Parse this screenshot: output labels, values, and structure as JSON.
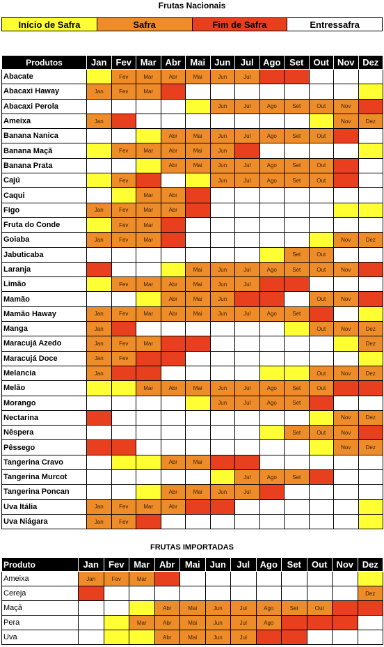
{
  "title_national": "Frutas Nacionais",
  "title_imported": "FRUTAS IMPORTADAS",
  "legend": [
    {
      "label": "Início de Safra",
      "color": "#ffff33"
    },
    {
      "label": "Safra",
      "color": "#ef8c2a"
    },
    {
      "label": "Fim de Safra",
      "color": "#e83f1e"
    },
    {
      "label": "Entressafra",
      "color": "#ffffff"
    }
  ],
  "month_headers": [
    "Jan",
    "Fev",
    "Mar",
    "Abr",
    "Mai",
    "Jun",
    "Jul",
    "Ago",
    "Set",
    "Out",
    "Nov",
    "Dez"
  ],
  "month_codes": {
    "y": "Início de Safra",
    "o": "Safra",
    "r": "Fim de Safra",
    "w": "Entressafra"
  },
  "national_table": {
    "name_header": "Produtos",
    "rows": [
      {
        "name": "Abacate",
        "months": [
          "y",
          "o",
          "o",
          "o",
          "o",
          "o",
          "o",
          "r",
          "r",
          "w",
          "w",
          "w"
        ]
      },
      {
        "name": "Abacaxi Haway",
        "months": [
          "o",
          "o",
          "o",
          "r",
          "w",
          "w",
          "w",
          "w",
          "w",
          "w",
          "w",
          "y"
        ]
      },
      {
        "name": "Abacaxi Perola",
        "months": [
          "w",
          "w",
          "w",
          "w",
          "y",
          "o",
          "o",
          "o",
          "o",
          "o",
          "o",
          "r"
        ]
      },
      {
        "name": "Ameixa",
        "months": [
          "o",
          "r",
          "w",
          "w",
          "w",
          "w",
          "w",
          "w",
          "w",
          "y",
          "o",
          "o"
        ]
      },
      {
        "name": "Banana Nanica",
        "months": [
          "w",
          "w",
          "y",
          "o",
          "o",
          "o",
          "o",
          "o",
          "o",
          "o",
          "r",
          "w"
        ]
      },
      {
        "name": "Banana Maçã",
        "months": [
          "y",
          "o",
          "o",
          "o",
          "o",
          "o",
          "r",
          "w",
          "w",
          "w",
          "w",
          "y"
        ]
      },
      {
        "name": "Banana Prata",
        "months": [
          "w",
          "w",
          "y",
          "o",
          "o",
          "o",
          "o",
          "o",
          "o",
          "o",
          "r",
          "w"
        ]
      },
      {
        "name": "Cajú",
        "months": [
          "y",
          "o",
          "r",
          "w",
          "y",
          "o",
          "o",
          "o",
          "o",
          "o",
          "r",
          "w"
        ]
      },
      {
        "name": "Caqui",
        "months": [
          "w",
          "y",
          "o",
          "o",
          "r",
          "w",
          "w",
          "w",
          "w",
          "w",
          "w",
          "w"
        ]
      },
      {
        "name": "Figo",
        "months": [
          "o",
          "o",
          "o",
          "o",
          "r",
          "w",
          "w",
          "w",
          "w",
          "w",
          "y",
          "y"
        ]
      },
      {
        "name": "Fruta do Conde",
        "months": [
          "y",
          "o",
          "o",
          "r",
          "w",
          "w",
          "w",
          "w",
          "w",
          "w",
          "w",
          "w"
        ]
      },
      {
        "name": "Goiaba",
        "months": [
          "o",
          "o",
          "o",
          "r",
          "w",
          "w",
          "w",
          "w",
          "w",
          "y",
          "o",
          "o"
        ]
      },
      {
        "name": "Jabuticaba",
        "months": [
          "w",
          "w",
          "w",
          "w",
          "w",
          "w",
          "w",
          "y",
          "o",
          "o",
          "w",
          "w"
        ]
      },
      {
        "name": "Laranja",
        "months": [
          "r",
          "w",
          "w",
          "y",
          "o",
          "o",
          "o",
          "o",
          "o",
          "o",
          "o",
          "r"
        ]
      },
      {
        "name": "Limão",
        "months": [
          "y",
          "o",
          "o",
          "o",
          "o",
          "o",
          "o",
          "r",
          "r",
          "w",
          "w",
          "w"
        ]
      },
      {
        "name": "Mamão",
        "months": [
          "w",
          "w",
          "y",
          "o",
          "o",
          "o",
          "r",
          "r",
          "w",
          "o",
          "o",
          "r"
        ]
      },
      {
        "name": "Mamão Haway",
        "months": [
          "o",
          "o",
          "o",
          "o",
          "o",
          "o",
          "o",
          "o",
          "o",
          "r",
          "w",
          "y"
        ]
      },
      {
        "name": "Manga",
        "months": [
          "o",
          "r",
          "w",
          "w",
          "w",
          "w",
          "w",
          "w",
          "y",
          "o",
          "o",
          "o"
        ]
      },
      {
        "name": "Maracujá Azedo",
        "months": [
          "o",
          "o",
          "o",
          "r",
          "r",
          "w",
          "w",
          "w",
          "w",
          "w",
          "y",
          "o"
        ]
      },
      {
        "name": "Maracujá Doce",
        "months": [
          "o",
          "o",
          "r",
          "r",
          "w",
          "w",
          "w",
          "w",
          "w",
          "w",
          "w",
          "y"
        ]
      },
      {
        "name": "Melancia",
        "months": [
          "o",
          "r",
          "r",
          "w",
          "w",
          "w",
          "w",
          "y",
          "y",
          "o",
          "o",
          "o"
        ]
      },
      {
        "name": "Melão",
        "months": [
          "y",
          "y",
          "o",
          "o",
          "o",
          "o",
          "o",
          "o",
          "o",
          "o",
          "r",
          "r"
        ]
      },
      {
        "name": "Morango",
        "months": [
          "w",
          "w",
          "w",
          "w",
          "y",
          "o",
          "o",
          "o",
          "o",
          "r",
          "w",
          "w"
        ]
      },
      {
        "name": "Nectarina",
        "months": [
          "r",
          "w",
          "w",
          "w",
          "w",
          "w",
          "w",
          "w",
          "w",
          "y",
          "o",
          "o"
        ]
      },
      {
        "name": "Nêspera",
        "months": [
          "w",
          "w",
          "w",
          "w",
          "w",
          "w",
          "w",
          "y",
          "o",
          "o",
          "o",
          "r"
        ]
      },
      {
        "name": "Pêssego",
        "months": [
          "r",
          "r",
          "w",
          "w",
          "w",
          "w",
          "w",
          "w",
          "w",
          "y",
          "o",
          "o"
        ]
      },
      {
        "name": "Tangerina Cravo",
        "months": [
          "w",
          "y",
          "y",
          "o",
          "o",
          "r",
          "r",
          "w",
          "w",
          "w",
          "w",
          "w"
        ]
      },
      {
        "name": "Tangerina Murcot",
        "months": [
          "w",
          "w",
          "w",
          "w",
          "w",
          "y",
          "o",
          "o",
          "o",
          "r",
          "w",
          "w"
        ]
      },
      {
        "name": "Tangerina Poncan",
        "months": [
          "w",
          "w",
          "y",
          "o",
          "o",
          "o",
          "o",
          "r",
          "w",
          "w",
          "w",
          "w"
        ]
      },
      {
        "name": "Uva Itália",
        "months": [
          "o",
          "o",
          "o",
          "o",
          "r",
          "r",
          "w",
          "w",
          "w",
          "w",
          "w",
          "y"
        ]
      },
      {
        "name": "Uva Niágara",
        "months": [
          "o",
          "o",
          "r",
          "w",
          "w",
          "w",
          "w",
          "w",
          "w",
          "w",
          "w",
          "y"
        ]
      }
    ]
  },
  "imported_table": {
    "name_header": "Produto",
    "rows": [
      {
        "name": "Ameixa",
        "months": [
          "o",
          "o",
          "o",
          "r",
          "w",
          "w",
          "w",
          "w",
          "w",
          "w",
          "w",
          "y"
        ]
      },
      {
        "name": "Cereja",
        "months": [
          "r",
          "w",
          "w",
          "w",
          "w",
          "w",
          "w",
          "w",
          "w",
          "w",
          "w",
          "o"
        ]
      },
      {
        "name": "Maçã",
        "months": [
          "w",
          "w",
          "y",
          "o",
          "o",
          "o",
          "o",
          "o",
          "o",
          "o",
          "r",
          "r"
        ]
      },
      {
        "name": "Pera",
        "months": [
          "w",
          "y",
          "o",
          "o",
          "o",
          "o",
          "o",
          "o",
          "r",
          "r",
          "r",
          "w"
        ]
      },
      {
        "name": "Uva",
        "months": [
          "w",
          "y",
          "y",
          "o",
          "o",
          "o",
          "o",
          "r",
          "r",
          "w",
          "w",
          "w"
        ]
      }
    ]
  }
}
